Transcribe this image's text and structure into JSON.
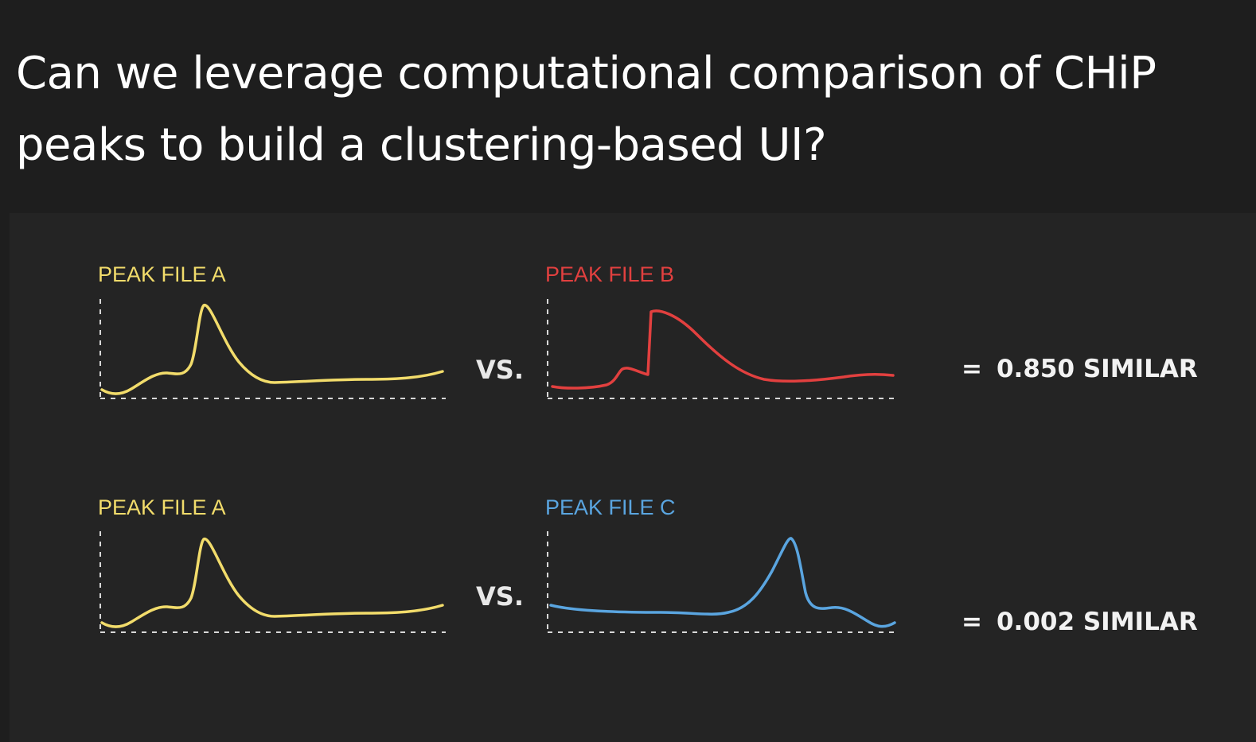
{
  "title": "Can we leverage computational comparison of CHiP peaks to build a clustering-based UI?",
  "colors": {
    "background": "#1e1e1e",
    "panel": "#242424",
    "file_a": "#f2dc6b",
    "file_b": "#e2403f",
    "file_c": "#5aa5e0",
    "axis": "#d8d8d8"
  },
  "comparisons": [
    {
      "left_label": "PEAK FILE A",
      "right_label": "PEAK FILE B",
      "vs": "VS.",
      "equals": "=",
      "score": "0.850",
      "score_word": "SIMILAR"
    },
    {
      "left_label": "PEAK FILE A",
      "right_label": "PEAK FILE C",
      "vs": "VS.",
      "equals": "=",
      "score": "0.002",
      "score_word": "SIMILAR"
    }
  ]
}
